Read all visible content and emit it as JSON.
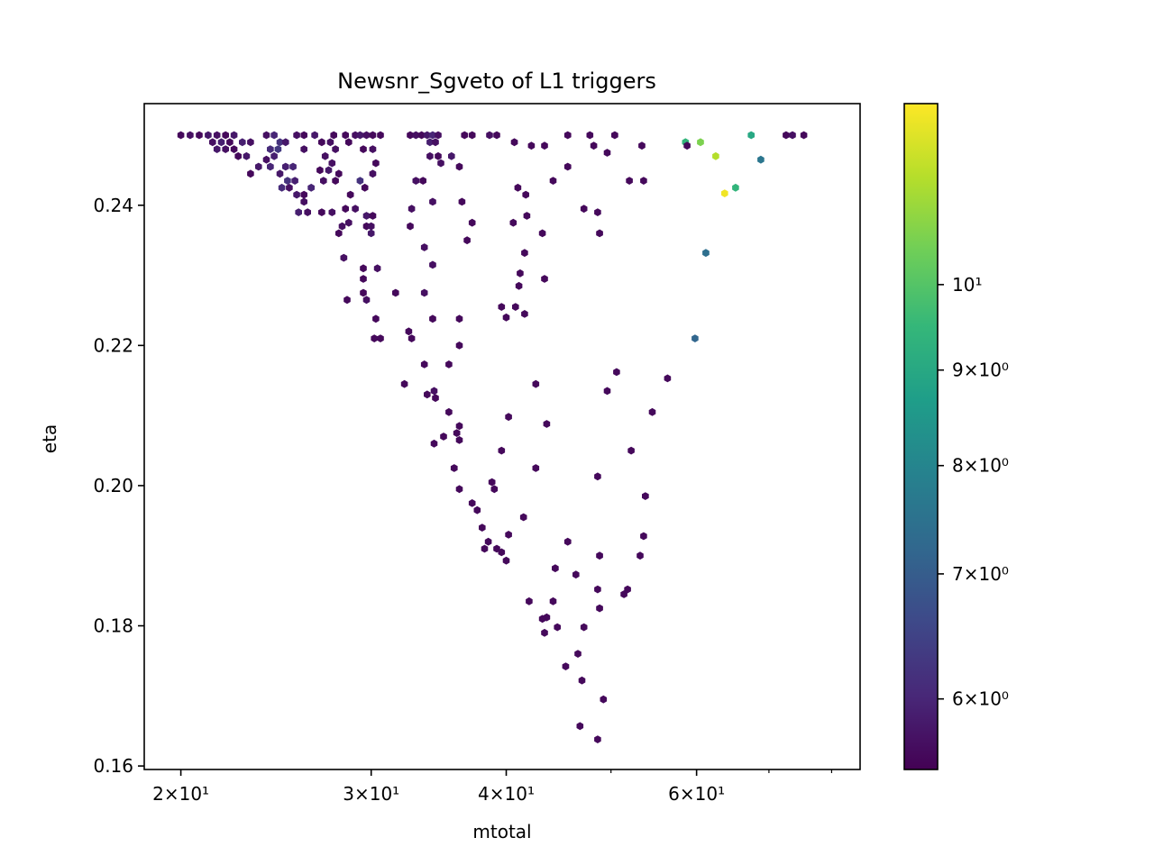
{
  "chart_data": {
    "type": "hexbin",
    "title": "Newsnr_Sgveto of L1 triggers",
    "xlabel": "mtotal",
    "ylabel": "eta",
    "xscale": "log",
    "xlim": [
      18.5,
      85
    ],
    "ylim": [
      0.1595,
      0.2545
    ],
    "x_ticks": [
      {
        "value": 20,
        "label": "2×10¹"
      },
      {
        "value": 30,
        "label": "3×10¹"
      },
      {
        "value": 40,
        "label": "4×10¹"
      },
      {
        "value": 60,
        "label": "6×10¹"
      }
    ],
    "x_minor_ticks": [
      50,
      70,
      80
    ],
    "y_ticks": [
      {
        "value": 0.16,
        "label": "0.16"
      },
      {
        "value": 0.18,
        "label": "0.18"
      },
      {
        "value": 0.2,
        "label": "0.20"
      },
      {
        "value": 0.22,
        "label": "0.22"
      },
      {
        "value": 0.24,
        "label": "0.24"
      }
    ],
    "colorbar": {
      "scale": "log",
      "range": [
        5.5,
        12.5
      ],
      "colormap": [
        "#440154",
        "#482878",
        "#3e4989",
        "#31688e",
        "#26828e",
        "#1f9e89",
        "#35b779",
        "#6ece58",
        "#b5de2b",
        "#fde725"
      ],
      "ticks": [
        {
          "value": 6,
          "label": "6×10⁰"
        },
        {
          "value": 7,
          "label": "7×10⁰"
        },
        {
          "value": 8,
          "label": "8×10⁰"
        },
        {
          "value": 9,
          "label": "9×10⁰"
        },
        {
          "value": 10,
          "label": "10¹"
        }
      ]
    },
    "points": [
      [
        20.0,
        0.25,
        5.6
      ],
      [
        20.4,
        0.25,
        5.7
      ],
      [
        20.8,
        0.25,
        5.6
      ],
      [
        21.2,
        0.25,
        5.8
      ],
      [
        21.6,
        0.25,
        5.7
      ],
      [
        22.0,
        0.25,
        5.6
      ],
      [
        22.4,
        0.25,
        5.8
      ],
      [
        21.4,
        0.249,
        5.7
      ],
      [
        21.8,
        0.249,
        5.9
      ],
      [
        22.2,
        0.249,
        5.6
      ],
      [
        21.6,
        0.248,
        5.8
      ],
      [
        22.0,
        0.248,
        5.7
      ],
      [
        22.4,
        0.248,
        5.6
      ],
      [
        22.8,
        0.249,
        5.9
      ],
      [
        23.2,
        0.249,
        5.7
      ],
      [
        22.6,
        0.247,
        5.6
      ],
      [
        23.0,
        0.247,
        5.8
      ],
      [
        24.0,
        0.25,
        5.7
      ],
      [
        24.4,
        0.25,
        6.0
      ],
      [
        24.7,
        0.249,
        6.2
      ],
      [
        25.0,
        0.249,
        5.8
      ],
      [
        24.2,
        0.248,
        6.1
      ],
      [
        24.6,
        0.248,
        6.3
      ],
      [
        24.4,
        0.247,
        5.9
      ],
      [
        24.0,
        0.2465,
        5.7
      ],
      [
        23.6,
        0.2455,
        5.8
      ],
      [
        23.2,
        0.2445,
        5.6
      ],
      [
        24.2,
        0.2455,
        6.0
      ],
      [
        25.0,
        0.2455,
        5.9
      ],
      [
        25.4,
        0.2455,
        6.0
      ],
      [
        24.7,
        0.2445,
        5.8
      ],
      [
        25.1,
        0.2435,
        6.2
      ],
      [
        25.5,
        0.2435,
        5.9
      ],
      [
        24.8,
        0.2425,
        6.1
      ],
      [
        25.2,
        0.2425,
        5.7
      ],
      [
        25.6,
        0.2415,
        5.8
      ],
      [
        26.0,
        0.2415,
        5.6
      ],
      [
        26.4,
        0.2425,
        6.0
      ],
      [
        26.0,
        0.2405,
        5.7
      ],
      [
        25.7,
        0.239,
        5.9
      ],
      [
        26.2,
        0.239,
        5.7
      ],
      [
        25.6,
        0.25,
        5.7
      ],
      [
        26.0,
        0.25,
        5.6
      ],
      [
        26.6,
        0.25,
        5.8
      ],
      [
        26.0,
        0.248,
        5.7
      ],
      [
        27.0,
        0.249,
        5.6
      ],
      [
        27.5,
        0.249,
        5.7
      ],
      [
        27.7,
        0.25,
        5.6
      ],
      [
        28.4,
        0.25,
        5.6
      ],
      [
        27.2,
        0.247,
        5.7
      ],
      [
        27.8,
        0.248,
        5.7
      ],
      [
        27.6,
        0.246,
        5.7
      ],
      [
        26.9,
        0.245,
        5.6
      ],
      [
        27.4,
        0.245,
        5.8
      ],
      [
        28.0,
        0.2445,
        5.6
      ],
      [
        27.1,
        0.2435,
        5.7
      ],
      [
        27.8,
        0.2435,
        5.6
      ],
      [
        27.0,
        0.239,
        5.6
      ],
      [
        27.6,
        0.239,
        5.7
      ],
      [
        28.0,
        0.236,
        5.6
      ],
      [
        28.2,
        0.237,
        5.7
      ],
      [
        28.6,
        0.249,
        5.6
      ],
      [
        29.0,
        0.25,
        5.7
      ],
      [
        29.3,
        0.25,
        5.8
      ],
      [
        29.7,
        0.25,
        5.7
      ],
      [
        30.1,
        0.25,
        5.6
      ],
      [
        29.5,
        0.248,
        5.6
      ],
      [
        30.1,
        0.248,
        5.7
      ],
      [
        30.6,
        0.25,
        5.6
      ],
      [
        30.3,
        0.246,
        5.6
      ],
      [
        30.1,
        0.2445,
        5.7
      ],
      [
        29.3,
        0.2435,
        6.2
      ],
      [
        29.6,
        0.2425,
        5.6
      ],
      [
        28.7,
        0.2415,
        5.6
      ],
      [
        29.0,
        0.2395,
        5.7
      ],
      [
        28.4,
        0.2395,
        5.6
      ],
      [
        29.7,
        0.2385,
        5.8
      ],
      [
        30.1,
        0.2385,
        5.6
      ],
      [
        29.7,
        0.237,
        5.6
      ],
      [
        30.0,
        0.237,
        5.7
      ],
      [
        30.0,
        0.236,
        5.8
      ],
      [
        28.6,
        0.2375,
        5.7
      ],
      [
        32.6,
        0.25,
        5.6
      ],
      [
        33.0,
        0.25,
        5.7
      ],
      [
        33.4,
        0.25,
        5.6
      ],
      [
        33.8,
        0.25,
        5.8
      ],
      [
        34.2,
        0.25,
        6.0
      ],
      [
        34.6,
        0.25,
        5.7
      ],
      [
        34.0,
        0.249,
        5.9
      ],
      [
        34.4,
        0.249,
        5.7
      ],
      [
        34.0,
        0.247,
        5.7
      ],
      [
        34.6,
        0.247,
        5.6
      ],
      [
        35.6,
        0.247,
        5.8
      ],
      [
        34.8,
        0.246,
        5.7
      ],
      [
        33.0,
        0.2435,
        5.7
      ],
      [
        33.5,
        0.2435,
        5.6
      ],
      [
        34.2,
        0.2405,
        5.7
      ],
      [
        32.7,
        0.2395,
        5.7
      ],
      [
        32.6,
        0.237,
        5.6
      ],
      [
        33.6,
        0.234,
        5.7
      ],
      [
        34.2,
        0.2315,
        5.7
      ],
      [
        31.6,
        0.2275,
        5.6
      ],
      [
        30.4,
        0.231,
        5.7
      ],
      [
        29.5,
        0.231,
        5.6
      ],
      [
        29.5,
        0.2295,
        5.6
      ],
      [
        28.3,
        0.2325,
        5.7
      ],
      [
        28.5,
        0.2265,
        5.6
      ],
      [
        29.5,
        0.2275,
        5.6
      ],
      [
        29.7,
        0.2265,
        5.7
      ],
      [
        30.3,
        0.2238,
        5.6
      ],
      [
        30.6,
        0.221,
        5.6
      ],
      [
        30.2,
        0.221,
        5.6
      ],
      [
        32.5,
        0.222,
        5.6
      ],
      [
        32.7,
        0.221,
        5.6
      ],
      [
        33.6,
        0.2275,
        5.7
      ],
      [
        34.2,
        0.2238,
        5.6
      ],
      [
        32.2,
        0.2145,
        5.6
      ],
      [
        33.6,
        0.2173,
        5.6
      ],
      [
        33.8,
        0.213,
        5.6
      ],
      [
        34.3,
        0.2135,
        5.7
      ],
      [
        34.4,
        0.2125,
        5.6
      ],
      [
        36.6,
        0.25,
        5.6
      ],
      [
        37.2,
        0.25,
        5.6
      ],
      [
        36.2,
        0.2455,
        5.6
      ],
      [
        38.6,
        0.25,
        5.7
      ],
      [
        39.2,
        0.25,
        5.6
      ],
      [
        40.7,
        0.249,
        5.6
      ],
      [
        42.2,
        0.2485,
        5.6
      ],
      [
        41.0,
        0.2425,
        5.6
      ],
      [
        41.7,
        0.2415,
        5.6
      ],
      [
        41.8,
        0.2385,
        5.6
      ],
      [
        40.6,
        0.2375,
        5.6
      ],
      [
        37.2,
        0.2375,
        5.6
      ],
      [
        36.8,
        0.235,
        5.6
      ],
      [
        36.4,
        0.2405,
        5.6
      ],
      [
        41.6,
        0.2332,
        5.6
      ],
      [
        41.2,
        0.2303,
        5.6
      ],
      [
        41.1,
        0.2285,
        5.6
      ],
      [
        39.6,
        0.2255,
        5.6
      ],
      [
        40.8,
        0.2255,
        5.6
      ],
      [
        41.6,
        0.2245,
        5.6
      ],
      [
        40.0,
        0.224,
        5.6
      ],
      [
        43.4,
        0.2295,
        5.6
      ],
      [
        43.2,
        0.236,
        5.6
      ],
      [
        43.4,
        0.2485,
        5.6
      ],
      [
        44.2,
        0.2435,
        5.6
      ],
      [
        45.6,
        0.25,
        5.6
      ],
      [
        47.8,
        0.25,
        5.6
      ],
      [
        48.2,
        0.2485,
        5.6
      ],
      [
        49.6,
        0.2475,
        5.6
      ],
      [
        50.4,
        0.25,
        5.6
      ],
      [
        45.6,
        0.2455,
        5.6
      ],
      [
        47.2,
        0.2395,
        5.6
      ],
      [
        48.6,
        0.239,
        5.6
      ],
      [
        48.8,
        0.236,
        5.6
      ],
      [
        52.0,
        0.2435,
        5.6
      ],
      [
        53.6,
        0.2435,
        5.6
      ],
      [
        53.4,
        0.2485,
        5.6
      ],
      [
        36.2,
        0.22,
        5.6
      ],
      [
        36.2,
        0.2238,
        5.6
      ],
      [
        35.4,
        0.2173,
        5.6
      ],
      [
        35.4,
        0.2105,
        5.6
      ],
      [
        36.2,
        0.2085,
        5.6
      ],
      [
        36.0,
        0.2075,
        5.6
      ],
      [
        35.0,
        0.207,
        5.6
      ],
      [
        34.3,
        0.206,
        5.6
      ],
      [
        36.2,
        0.2065,
        5.6
      ],
      [
        35.8,
        0.2025,
        5.6
      ],
      [
        36.2,
        0.1995,
        5.6
      ],
      [
        37.2,
        0.1975,
        5.6
      ],
      [
        37.6,
        0.1965,
        5.6
      ],
      [
        38.8,
        0.2005,
        5.6
      ],
      [
        39.0,
        0.1995,
        5.6
      ],
      [
        38.0,
        0.194,
        5.6
      ],
      [
        38.5,
        0.192,
        5.6
      ],
      [
        38.2,
        0.191,
        5.6
      ],
      [
        39.2,
        0.191,
        5.6
      ],
      [
        39.6,
        0.1905,
        5.6
      ],
      [
        40.0,
        0.1893,
        5.6
      ],
      [
        40.2,
        0.193,
        5.6
      ],
      [
        41.5,
        0.1955,
        5.6
      ],
      [
        40.2,
        0.2098,
        5.6
      ],
      [
        39.6,
        0.205,
        5.6
      ],
      [
        42.6,
        0.2145,
        5.6
      ],
      [
        42.6,
        0.2025,
        5.6
      ],
      [
        43.6,
        0.2088,
        5.6
      ],
      [
        42.0,
        0.1835,
        5.6
      ],
      [
        44.2,
        0.1835,
        5.6
      ],
      [
        43.6,
        0.1812,
        5.6
      ],
      [
        43.2,
        0.181,
        5.6
      ],
      [
        43.4,
        0.179,
        5.6
      ],
      [
        44.6,
        0.1798,
        5.6
      ],
      [
        44.4,
        0.1882,
        5.6
      ],
      [
        46.4,
        0.1873,
        5.6
      ],
      [
        45.6,
        0.192,
        5.6
      ],
      [
        47.2,
        0.1798,
        5.6
      ],
      [
        46.6,
        0.176,
        5.6
      ],
      [
        45.4,
        0.1742,
        5.6
      ],
      [
        47.0,
        0.1722,
        5.6
      ],
      [
        48.8,
        0.1825,
        5.6
      ],
      [
        49.2,
        0.1695,
        5.6
      ],
      [
        46.8,
        0.1657,
        5.6
      ],
      [
        48.6,
        0.1638,
        5.6
      ],
      [
        48.8,
        0.19,
        5.6
      ],
      [
        48.6,
        0.2013,
        5.6
      ],
      [
        48.6,
        0.1852,
        5.6
      ],
      [
        49.6,
        0.2135,
        5.6
      ],
      [
        50.6,
        0.2162,
        5.6
      ],
      [
        51.4,
        0.1845,
        5.6
      ],
      [
        51.8,
        0.1852,
        5.6
      ],
      [
        52.2,
        0.205,
        5.6
      ],
      [
        53.2,
        0.19,
        5.6
      ],
      [
        53.6,
        0.1928,
        5.6
      ],
      [
        53.8,
        0.1985,
        5.6
      ],
      [
        54.6,
        0.2105,
        5.6
      ],
      [
        56.4,
        0.2153,
        5.6
      ],
      [
        58.6,
        0.249,
        9.4
      ],
      [
        60.5,
        0.249,
        10.6
      ],
      [
        62.5,
        0.247,
        11.4
      ],
      [
        63.7,
        0.2417,
        12.3
      ],
      [
        65.2,
        0.2425,
        9.4
      ],
      [
        67.4,
        0.25,
        9.0
      ],
      [
        68.8,
        0.2465,
        7.6
      ],
      [
        61.2,
        0.2332,
        7.4
      ],
      [
        58.8,
        0.2485,
        5.6
      ],
      [
        59.8,
        0.221,
        7.2
      ],
      [
        72.6,
        0.25,
        5.6
      ],
      [
        73.6,
        0.25,
        5.7
      ],
      [
        75.4,
        0.25,
        5.6
      ]
    ]
  }
}
